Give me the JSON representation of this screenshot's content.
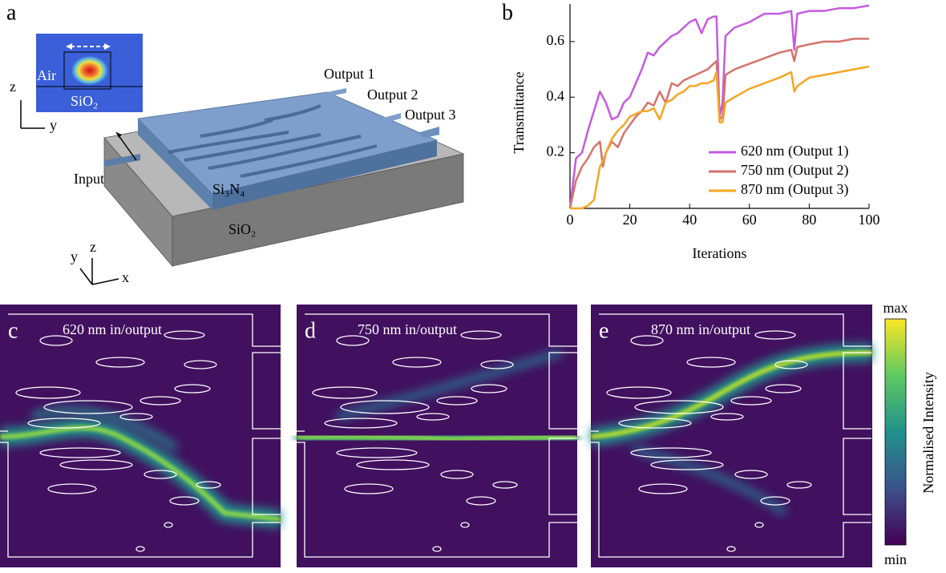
{
  "panel_a": {
    "label": "a",
    "inset": {
      "top": "Air",
      "bottom": "SiO₂",
      "axis_vertical": "z",
      "axis_horizontal": "y"
    },
    "outputs": [
      "Output 1",
      "Output 2",
      "Output 3"
    ],
    "input": "Input",
    "core": "Si₃N₄",
    "substrate": "SiO₂",
    "axes": {
      "y": "y",
      "z": "z",
      "x": "x"
    }
  },
  "panel_b_label": "b",
  "chart_data": {
    "type": "line",
    "xlabel": "Iterations",
    "ylabel": "Transmittance",
    "x": [
      0,
      2,
      4,
      6,
      8,
      10,
      11,
      12,
      14,
      16,
      18,
      20,
      22,
      24,
      26,
      28,
      30,
      32,
      34,
      36,
      38,
      40,
      42,
      44,
      46,
      48,
      49,
      50,
      51,
      52,
      55,
      60,
      65,
      70,
      74,
      75,
      76,
      80,
      85,
      90,
      95,
      100
    ],
    "series": [
      {
        "name": "620 nm (Output 1)",
        "color": "#c45be0",
        "values": [
          0,
          0.18,
          0.2,
          0.28,
          0.35,
          0.42,
          0.4,
          0.38,
          0.32,
          0.33,
          0.38,
          0.4,
          0.45,
          0.5,
          0.56,
          0.55,
          0.58,
          0.6,
          0.62,
          0.63,
          0.65,
          0.67,
          0.68,
          0.63,
          0.68,
          0.69,
          0.69,
          0.33,
          0.38,
          0.62,
          0.65,
          0.67,
          0.7,
          0.7,
          0.71,
          0.57,
          0.7,
          0.71,
          0.71,
          0.72,
          0.72,
          0.73
        ]
      },
      {
        "name": "750 nm (Output 2)",
        "color": "#d4736b",
        "values": [
          0,
          0.1,
          0.15,
          0.18,
          0.22,
          0.24,
          0.15,
          0.2,
          0.24,
          0.22,
          0.27,
          0.3,
          0.33,
          0.35,
          0.38,
          0.37,
          0.42,
          0.38,
          0.45,
          0.44,
          0.46,
          0.47,
          0.48,
          0.49,
          0.5,
          0.52,
          0.53,
          0.32,
          0.33,
          0.48,
          0.5,
          0.52,
          0.54,
          0.56,
          0.57,
          0.53,
          0.58,
          0.59,
          0.6,
          0.6,
          0.61,
          0.61
        ]
      },
      {
        "name": "870 nm (Output 3)",
        "color": "#f5a623",
        "values": [
          0,
          0,
          0,
          0.01,
          0.03,
          0.15,
          0.17,
          0.2,
          0.25,
          0.28,
          0.3,
          0.33,
          0.34,
          0.35,
          0.35,
          0.36,
          0.32,
          0.38,
          0.39,
          0.41,
          0.42,
          0.44,
          0.44,
          0.45,
          0.45,
          0.46,
          0.49,
          0.31,
          0.31,
          0.38,
          0.4,
          0.43,
          0.45,
          0.47,
          0.49,
          0.42,
          0.44,
          0.47,
          0.48,
          0.49,
          0.5,
          0.51
        ]
      }
    ],
    "xlim": [
      0,
      100
    ],
    "ylim": [
      0,
      0.735
    ],
    "xticks": [
      0,
      20,
      40,
      60,
      80,
      100
    ],
    "yticks": [
      0.2,
      0.4,
      0.6
    ],
    "grid": false,
    "legend": "lower right"
  },
  "field_panels": [
    {
      "label": "c",
      "title": "620 nm in/output"
    },
    {
      "label": "d",
      "title": "750 nm in/output"
    },
    {
      "label": "e",
      "title": "870 nm in/output"
    }
  ],
  "colorbar": {
    "max": "max",
    "min": "min",
    "label": "Normalised Intensity"
  }
}
